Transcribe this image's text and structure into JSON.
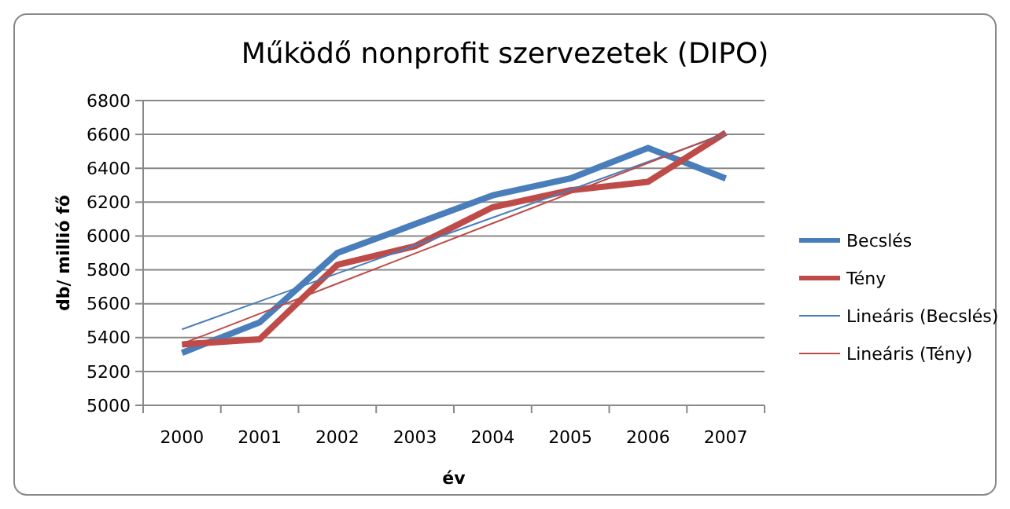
{
  "chart_data": {
    "type": "line",
    "title": "Működő nonprofit szervezetek (DIPO)",
    "xlabel": "év",
    "ylabel": "db/ millió fő",
    "categories": [
      "2000",
      "2001",
      "2002",
      "2003",
      "2004",
      "2005",
      "2006",
      "2007"
    ],
    "series": [
      {
        "name": "Becslés",
        "color": "#4a7ebb",
        "values": [
          5310,
          5490,
          5900,
          6070,
          6240,
          6340,
          6520,
          6340
        ]
      },
      {
        "name": "Tény",
        "color": "#be4b48",
        "values": [
          5360,
          5390,
          5830,
          5940,
          6170,
          6270,
          6320,
          6610
        ]
      },
      {
        "name": "Lineáris (Becslés)",
        "color": "#4a7ebb",
        "values": [
          5449,
          5614,
          5779,
          5944,
          6109,
          6273,
          6438,
          6603
        ]
      },
      {
        "name": "Lineáris (Tény)",
        "color": "#be4b48",
        "values": [
          5363,
          5541,
          5719,
          5897,
          6075,
          6253,
          6431,
          6609
        ]
      }
    ],
    "ylim": [
      5000,
      6800
    ],
    "yticks": [
      5000,
      5200,
      5400,
      5600,
      5800,
      6000,
      6200,
      6400,
      6600,
      6800
    ],
    "grid": "y",
    "legend": "right",
    "marker": "none",
    "line_style": "solid"
  }
}
